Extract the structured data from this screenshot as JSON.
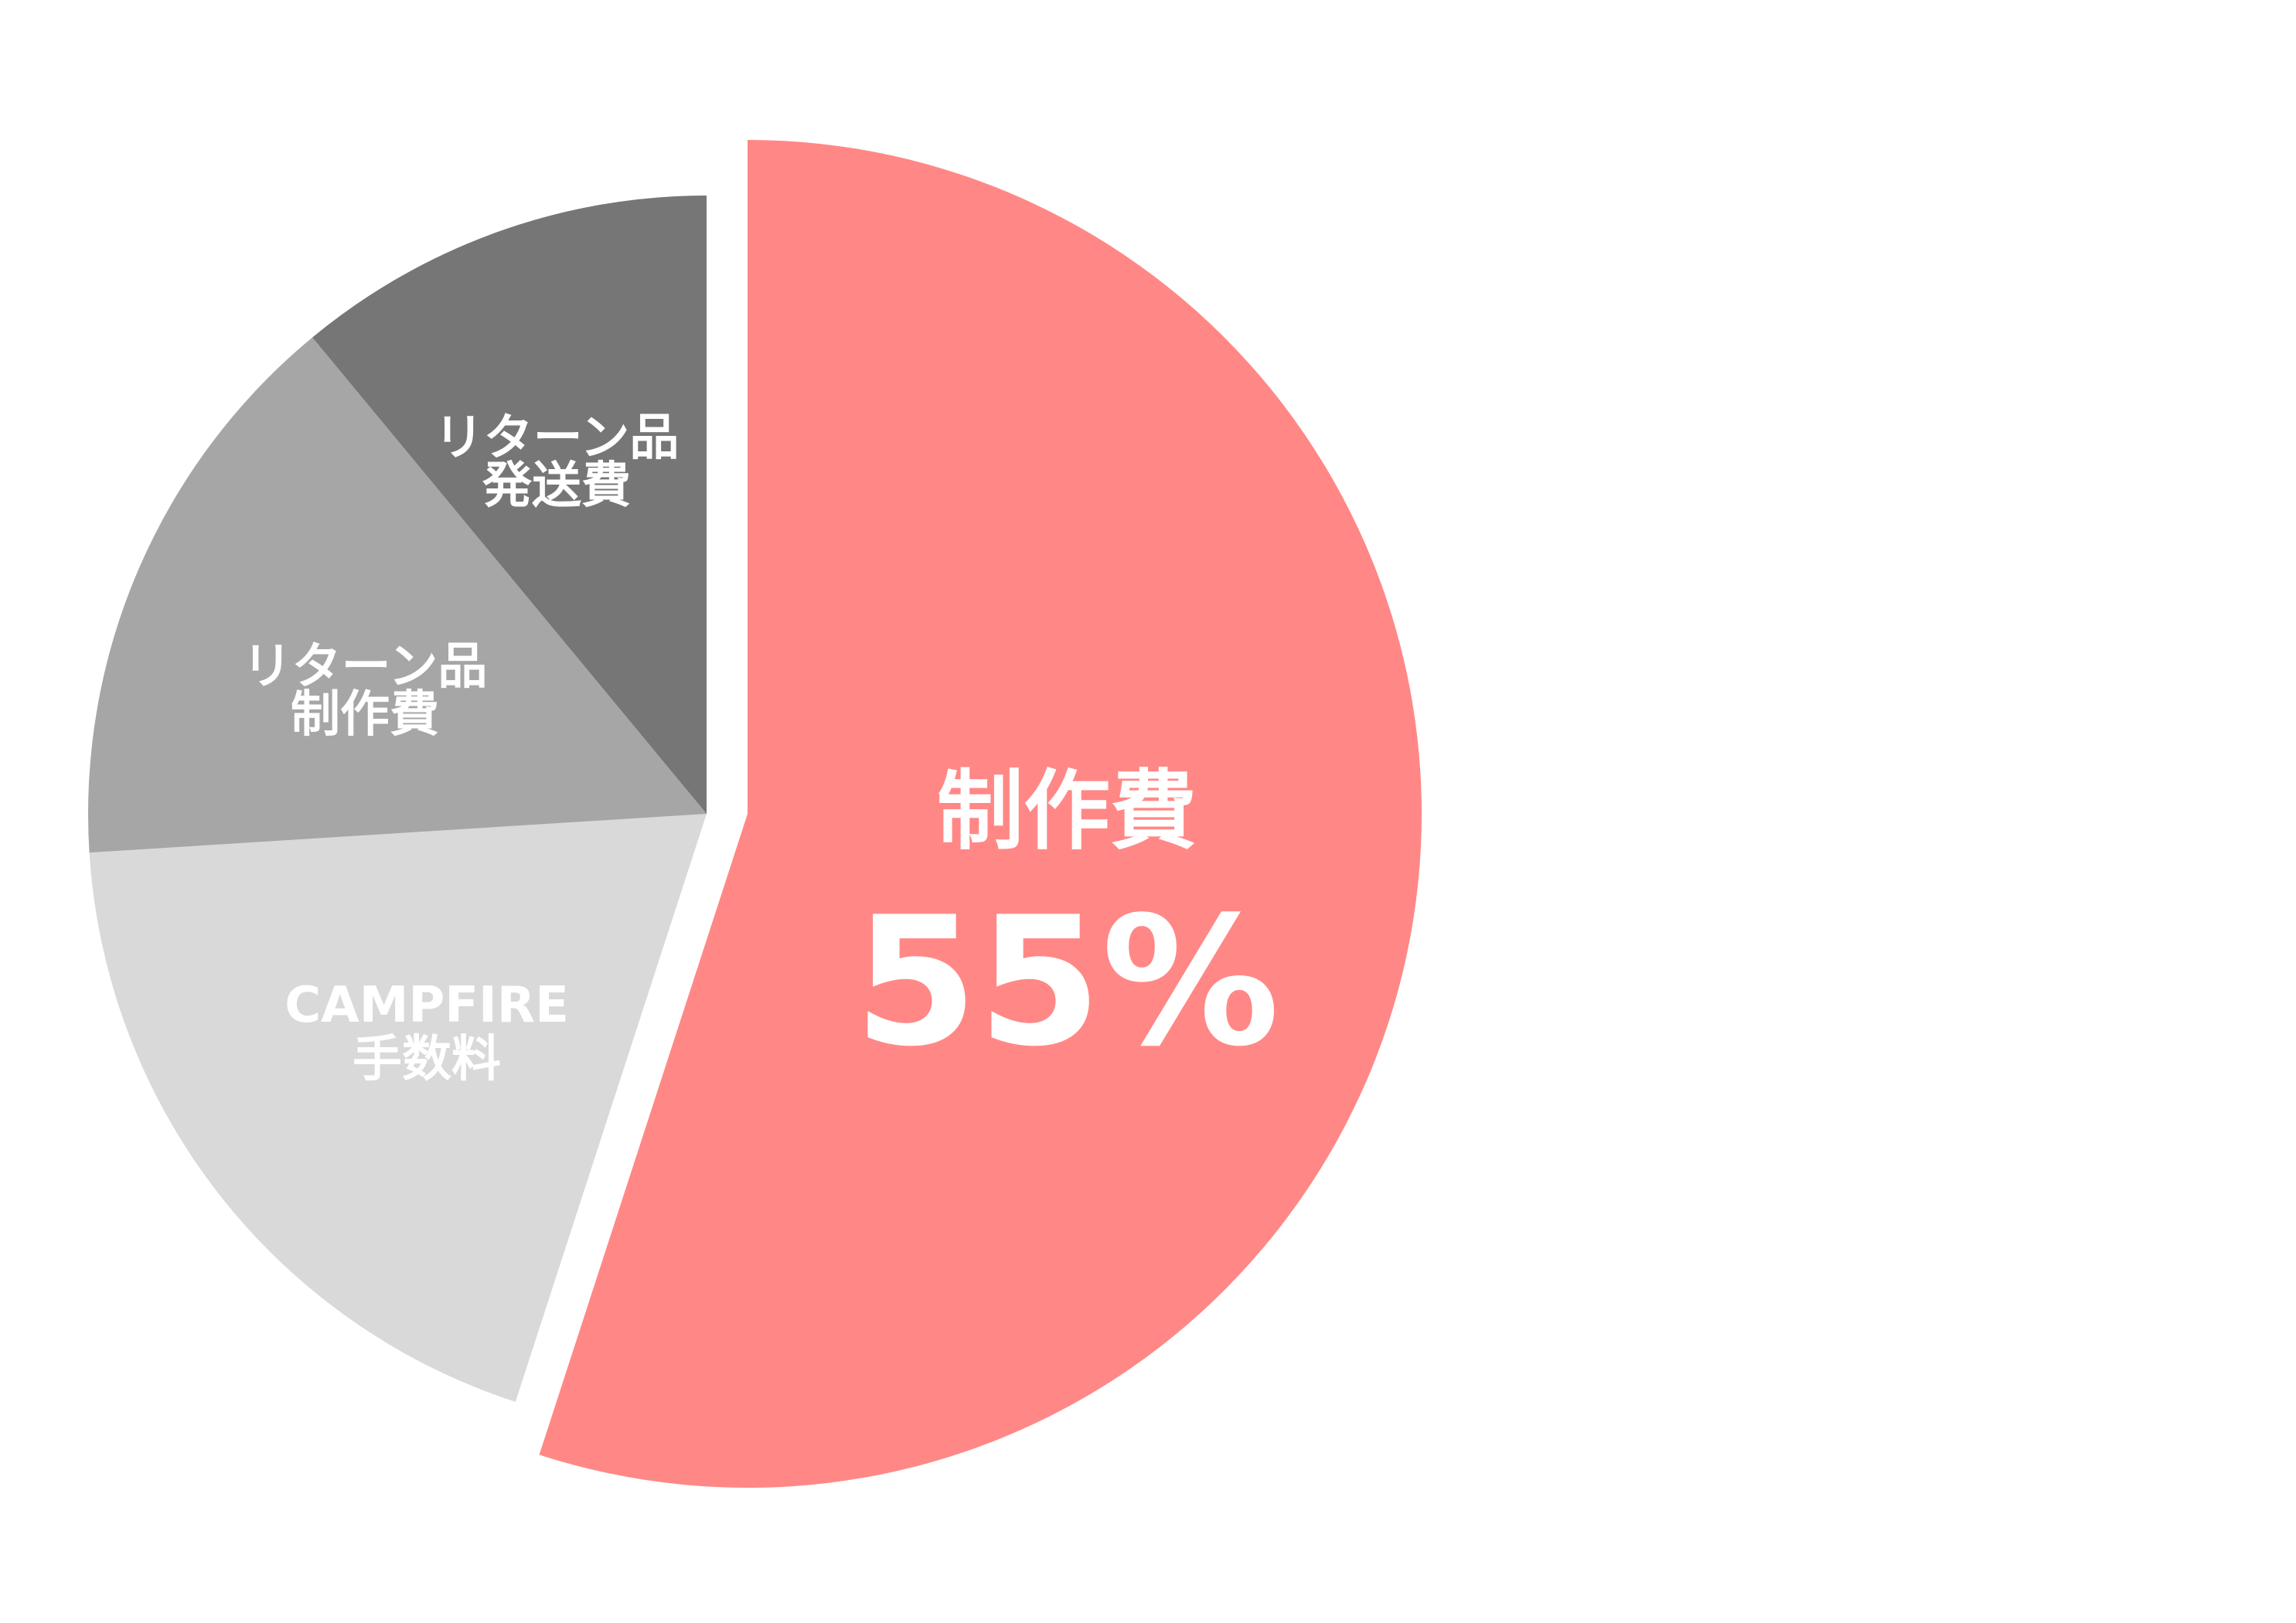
{
  "chart_data": {
    "type": "pie",
    "start": "top",
    "direction": "clockwise",
    "slices": [
      {
        "label": "制作費",
        "value": 55,
        "value_label": "55%",
        "color": "#FF8886",
        "exploded": true
      },
      {
        "label_lines": [
          "CAMPFIRE",
          "手数料"
        ],
        "value": 19,
        "color": "#D9D9D9"
      },
      {
        "label_lines": [
          "リターン品",
          "制作費"
        ],
        "value": 15,
        "color": "#A6A6A6"
      },
      {
        "label_lines": [
          "リターン品",
          "発送費"
        ],
        "value": 11,
        "color": "#767676"
      }
    ]
  }
}
